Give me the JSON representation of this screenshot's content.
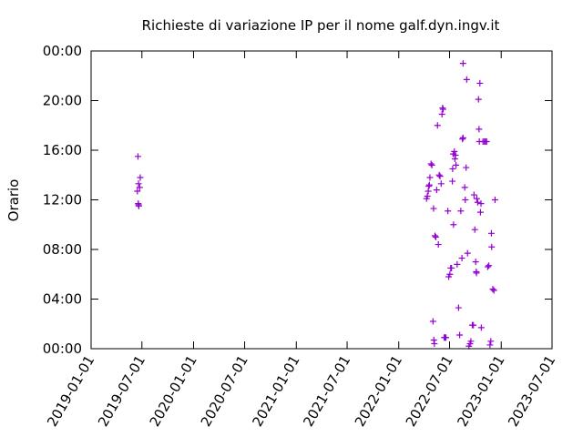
{
  "chart_data": {
    "type": "scatter",
    "title": "Richieste di variazione IP per il nome galf.dyn.ingv.it",
    "ylabel": "Orario",
    "xlabel": "",
    "xlim": [
      "2019-01-01",
      "2023-07-01"
    ],
    "ylim": [
      0,
      24
    ],
    "x_ticks": [
      "2019-01-01",
      "2019-07-01",
      "2020-01-01",
      "2020-07-01",
      "2021-01-01",
      "2021-07-01",
      "2022-01-01",
      "2022-07-01",
      "2023-01-01",
      "2023-07-01"
    ],
    "y_ticks": [
      {
        "value": 0,
        "label": "00:00"
      },
      {
        "value": 4,
        "label": "04:00"
      },
      {
        "value": 8,
        "label": "08:00"
      },
      {
        "value": 12,
        "label": "12:00"
      },
      {
        "value": 16,
        "label": "16:00"
      },
      {
        "value": 20,
        "label": "20:00"
      },
      {
        "value": 24,
        "label": "00:00"
      }
    ],
    "marker": "+",
    "color": "#9400d3",
    "grid": false,
    "points": [
      [
        "2019-06-17",
        15.5
      ],
      [
        "2019-06-15",
        12.7
      ],
      [
        "2019-06-19",
        13.3
      ],
      [
        "2019-06-25",
        13.8
      ],
      [
        "2019-06-23",
        13.0
      ],
      [
        "2019-06-18",
        11.7
      ],
      [
        "2019-06-20",
        11.5
      ],
      [
        "2019-06-19",
        11.6
      ],
      [
        "2022-04-10",
        12.1
      ],
      [
        "2022-04-13",
        12.3
      ],
      [
        "2022-04-16",
        12.7
      ],
      [
        "2022-04-18",
        13.1
      ],
      [
        "2022-04-20",
        13.2
      ],
      [
        "2022-04-22",
        13.8
      ],
      [
        "2022-04-26",
        14.9
      ],
      [
        "2022-04-29",
        14.8
      ],
      [
        "2022-05-05",
        11.3
      ],
      [
        "2022-05-03",
        2.2
      ],
      [
        "2022-05-06",
        0.7
      ],
      [
        "2022-05-08",
        0.4
      ],
      [
        "2022-05-10",
        9.1
      ],
      [
        "2022-05-13",
        9.0
      ],
      [
        "2022-05-16",
        12.8
      ],
      [
        "2022-05-19",
        18.0
      ],
      [
        "2022-05-22",
        8.4
      ],
      [
        "2022-05-25",
        14.0
      ],
      [
        "2022-05-28",
        13.9
      ],
      [
        "2022-06-01",
        13.3
      ],
      [
        "2022-06-04",
        18.9
      ],
      [
        "2022-06-06",
        19.4
      ],
      [
        "2022-06-08",
        19.3
      ],
      [
        "2022-06-12",
        0.9
      ],
      [
        "2022-06-15",
        0.9
      ],
      [
        "2022-06-18",
        0.9
      ],
      [
        "2022-06-25",
        11.1
      ],
      [
        "2022-06-28",
        5.8
      ],
      [
        "2022-07-02",
        6.0
      ],
      [
        "2022-07-05",
        6.5
      ],
      [
        "2022-07-08",
        6.5
      ],
      [
        "2022-07-11",
        13.5
      ],
      [
        "2022-07-12",
        14.5
      ],
      [
        "2022-07-14",
        15.7
      ],
      [
        "2022-07-15",
        10.0
      ],
      [
        "2022-07-18",
        15.9
      ],
      [
        "2022-07-20",
        15.3
      ],
      [
        "2022-07-22",
        15.6
      ],
      [
        "2022-07-24",
        14.8
      ],
      [
        "2022-07-28",
        6.8
      ],
      [
        "2022-08-02",
        3.3
      ],
      [
        "2022-08-06",
        1.1
      ],
      [
        "2022-08-10",
        11.1
      ],
      [
        "2022-08-14",
        7.3
      ],
      [
        "2022-08-16",
        16.9
      ],
      [
        "2022-08-18",
        17.0
      ],
      [
        "2022-08-18",
        23.0
      ],
      [
        "2022-08-24",
        13.0
      ],
      [
        "2022-08-26",
        12.0
      ],
      [
        "2022-08-29",
        14.6
      ],
      [
        "2022-08-31",
        21.7
      ],
      [
        "2022-09-03",
        7.7
      ],
      [
        "2022-09-08",
        0.2
      ],
      [
        "2022-09-12",
        0.4
      ],
      [
        "2022-09-15",
        0.6
      ],
      [
        "2022-09-20",
        1.9
      ],
      [
        "2022-09-24",
        1.9
      ],
      [
        "2022-09-26",
        12.4
      ],
      [
        "2022-09-29",
        9.6
      ],
      [
        "2022-10-02",
        7.0
      ],
      [
        "2022-10-04",
        6.2
      ],
      [
        "2022-10-05",
        6.1
      ],
      [
        "2022-10-06",
        12.1
      ],
      [
        "2022-10-09",
        11.8
      ],
      [
        "2022-10-12",
        20.1
      ],
      [
        "2022-10-14",
        17.7
      ],
      [
        "2022-10-15",
        16.7
      ],
      [
        "2022-10-17",
        21.4
      ],
      [
        "2022-10-19",
        11.0
      ],
      [
        "2022-10-21",
        11.7
      ],
      [
        "2022-10-22",
        1.7
      ],
      [
        "2022-10-28",
        16.7
      ],
      [
        "2022-11-02",
        16.7
      ],
      [
        "2022-11-06",
        16.7
      ],
      [
        "2022-11-10",
        16.7
      ],
      [
        "2022-11-14",
        6.6
      ],
      [
        "2022-11-18",
        6.7
      ],
      [
        "2022-11-22",
        0.3
      ],
      [
        "2022-11-25",
        0.6
      ],
      [
        "2022-11-27",
        9.3
      ],
      [
        "2022-11-28",
        8.2
      ],
      [
        "2022-12-02",
        4.8
      ],
      [
        "2022-12-06",
        4.7
      ],
      [
        "2022-12-10",
        12.0
      ]
    ]
  }
}
